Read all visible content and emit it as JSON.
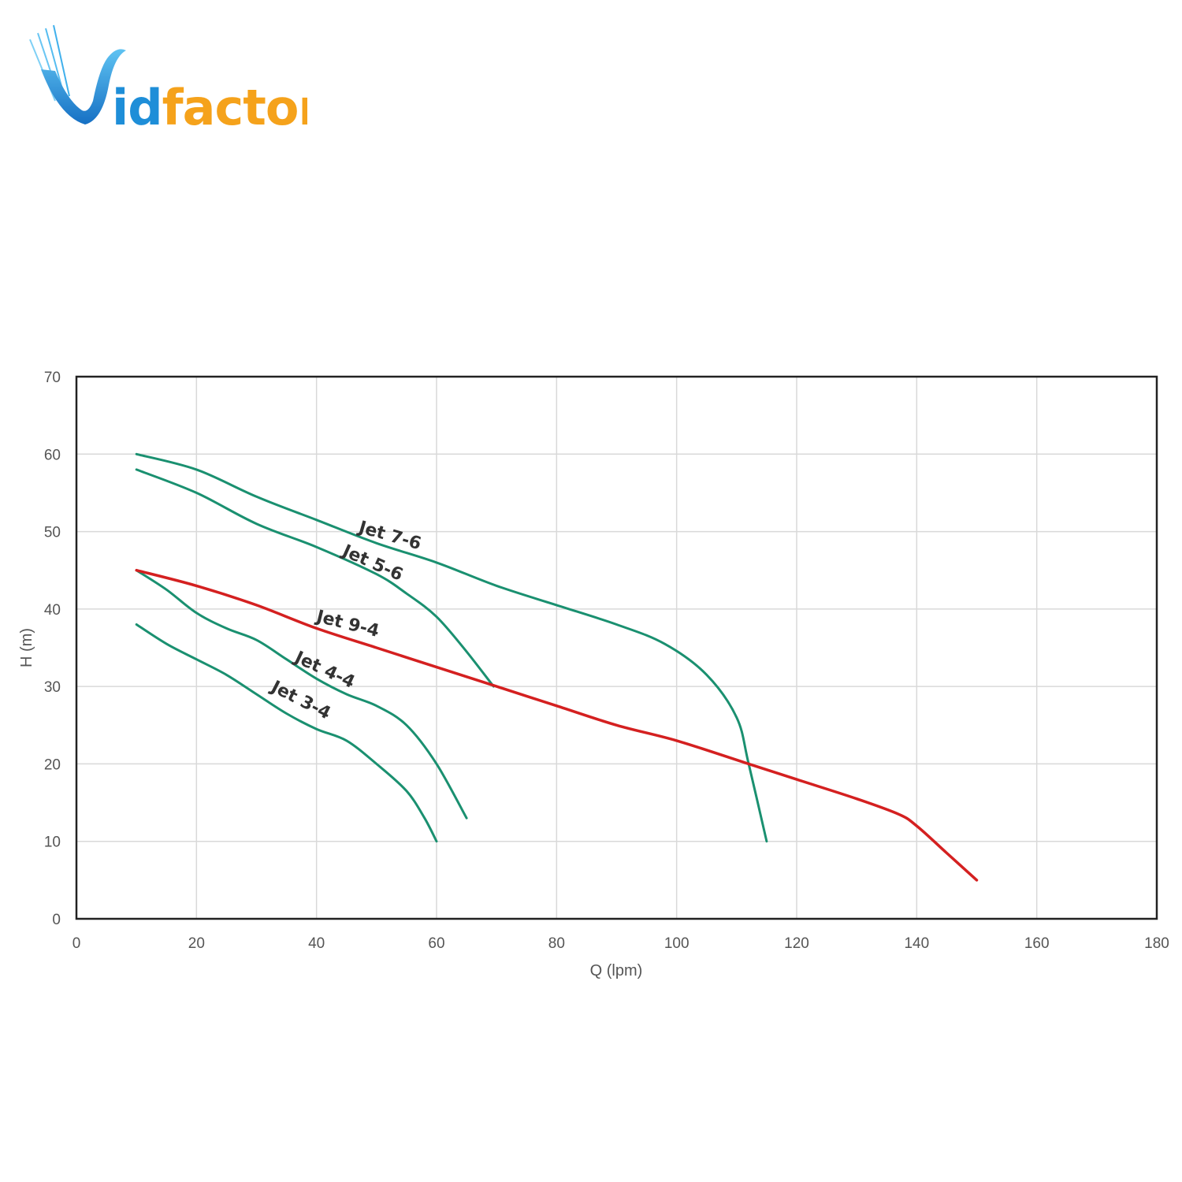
{
  "brand": {
    "logo_text": "Vidfactor",
    "colors": {
      "blue": "#1e8ed8",
      "orange": "#f5a21b"
    }
  },
  "chart_data": {
    "type": "line",
    "xlabel": "Q (lpm)",
    "ylabel": "H (m)",
    "xlim": [
      0,
      180
    ],
    "ylim": [
      0,
      70
    ],
    "xticks": [
      0,
      20,
      40,
      60,
      80,
      100,
      120,
      140,
      160,
      180
    ],
    "yticks": [
      0,
      10,
      20,
      30,
      40,
      50,
      60,
      70
    ],
    "grid": true,
    "legend": "none",
    "series": [
      {
        "name": "Jet 7-6",
        "color": "#1a9070",
        "x": [
          10,
          20,
          30,
          40,
          50,
          60,
          70,
          80,
          90,
          98,
          105,
          110,
          112,
          115
        ],
        "y": [
          60,
          58,
          54.5,
          51.5,
          48.5,
          46,
          43,
          40.5,
          38,
          35.5,
          31.5,
          26,
          20,
          10
        ]
      },
      {
        "name": "Jet 5-6",
        "color": "#1a9070",
        "x": [
          10,
          20,
          30,
          40,
          50,
          55,
          60,
          65,
          69.5
        ],
        "y": [
          58,
          55,
          51,
          48,
          44.5,
          42,
          39,
          34.5,
          30
        ]
      },
      {
        "name": "Jet 9-4",
        "color": "#d42020",
        "x": [
          10,
          20,
          30,
          40,
          50,
          60,
          70,
          80,
          90,
          100,
          112,
          120,
          130,
          137,
          140,
          145,
          150
        ],
        "y": [
          45,
          43,
          40.5,
          37.5,
          35,
          32.5,
          30,
          27.5,
          25,
          23,
          20,
          18,
          15.5,
          13.5,
          12,
          8.5,
          5
        ]
      },
      {
        "name": "Jet 4-4",
        "color": "#1a9070",
        "x": [
          10,
          15,
          20,
          25,
          30,
          35,
          40,
          45,
          50,
          55,
          60,
          65
        ],
        "y": [
          45,
          42.5,
          39.5,
          37.5,
          36,
          33.5,
          31,
          29,
          27.5,
          25,
          20,
          13
        ]
      },
      {
        "name": "Jet 3-4",
        "color": "#1a9070",
        "x": [
          10,
          15,
          20,
          25,
          30,
          35,
          40,
          45,
          50,
          55,
          58,
          60
        ],
        "y": [
          38,
          35.5,
          33.5,
          31.5,
          29,
          26.5,
          24.5,
          23,
          20,
          16.5,
          13,
          10
        ]
      }
    ],
    "annotations": [
      {
        "text": "Jet 7-6",
        "x": 52,
        "y": 48.8,
        "angle": 16
      },
      {
        "text": "Jet 5-6",
        "x": 49,
        "y": 45.3,
        "angle": 24
      },
      {
        "text": "Jet 9-4",
        "x": 45,
        "y": 37.4,
        "angle": 14
      },
      {
        "text": "Jet 4-4",
        "x": 41,
        "y": 31.5,
        "angle": 25
      },
      {
        "text": "Jet 3-4",
        "x": 37,
        "y": 27.6,
        "angle": 27
      }
    ]
  }
}
